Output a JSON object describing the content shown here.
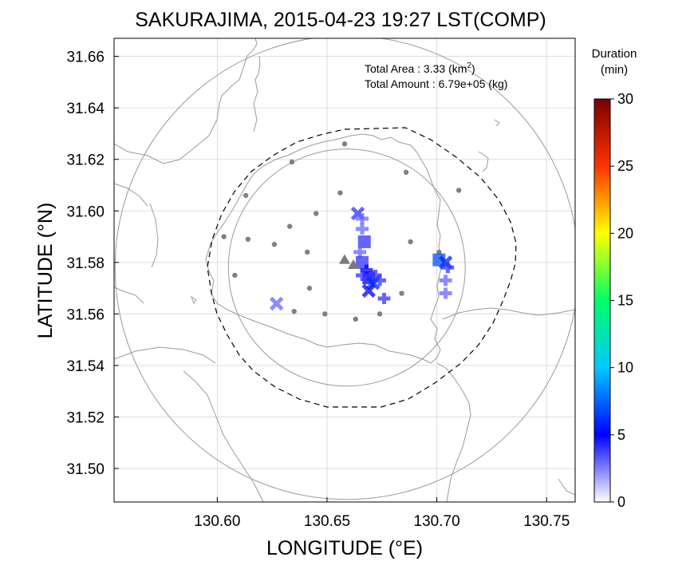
{
  "chart_data": {
    "type": "scatter",
    "title": "SAKURAJIMA, 2015-04-23 19:27 LST(COMP)",
    "xlabel": "LONGITUDE (°E)",
    "ylabel": "LATITUDE (°N)",
    "xlim": [
      130.553,
      130.763
    ],
    "ylim": [
      31.487,
      31.667
    ],
    "xticks": [
      "130.60",
      "130.65",
      "130.70",
      "130.75"
    ],
    "yticks": [
      "31.50",
      "31.52",
      "31.54",
      "31.56",
      "31.58",
      "31.60",
      "31.62",
      "31.64",
      "31.66"
    ],
    "grid": true,
    "annotations": {
      "area_label": "Total Area   : 3.33 (km",
      "area_sup": "2",
      "area_close": ")",
      "amount": "Total Amount : 6.79e+05 (kg)"
    },
    "colorbar": {
      "title_line1": "Duration",
      "title_line2": "(min)",
      "range": [
        0,
        30
      ],
      "ticks": [
        "0",
        "5",
        "10",
        "15",
        "20",
        "25",
        "30"
      ]
    },
    "stations": [
      {
        "lon": 130.658,
        "lat": 31.626
      },
      {
        "lon": 130.634,
        "lat": 31.619
      },
      {
        "lon": 130.686,
        "lat": 31.615
      },
      {
        "lon": 130.613,
        "lat": 31.606
      },
      {
        "lon": 130.656,
        "lat": 31.607
      },
      {
        "lon": 130.71,
        "lat": 31.608
      },
      {
        "lon": 130.645,
        "lat": 31.599
      },
      {
        "lon": 130.603,
        "lat": 31.59
      },
      {
        "lon": 130.614,
        "lat": 31.589
      },
      {
        "lon": 130.633,
        "lat": 31.594
      },
      {
        "lon": 130.688,
        "lat": 31.588
      },
      {
        "lon": 130.626,
        "lat": 31.587
      },
      {
        "lon": 130.641,
        "lat": 31.584
      },
      {
        "lon": 130.701,
        "lat": 31.584
      },
      {
        "lon": 130.608,
        "lat": 31.575
      },
      {
        "lon": 130.642,
        "lat": 31.57
      },
      {
        "lon": 130.684,
        "lat": 31.568
      },
      {
        "lon": 130.635,
        "lat": 31.561
      },
      {
        "lon": 130.649,
        "lat": 31.56
      },
      {
        "lon": 130.663,
        "lat": 31.558
      },
      {
        "lon": 130.674,
        "lat": 31.56
      }
    ],
    "vents": [
      {
        "lon": 130.658,
        "lat": 31.581
      },
      {
        "lon": 130.662,
        "lat": 31.579
      }
    ],
    "deposits": [
      {
        "lon": 130.664,
        "lat": 31.599,
        "min": 4,
        "shape": "x"
      },
      {
        "lon": 130.666,
        "lat": 31.597,
        "min": 3,
        "shape": "plus"
      },
      {
        "lon": 130.666,
        "lat": 31.593,
        "min": 3,
        "shape": "plus"
      },
      {
        "lon": 130.667,
        "lat": 31.588,
        "min": 4,
        "shape": "square"
      },
      {
        "lon": 130.665,
        "lat": 31.584,
        "min": 3,
        "shape": "plus"
      },
      {
        "lon": 130.666,
        "lat": 31.58,
        "min": 4,
        "shape": "square"
      },
      {
        "lon": 130.668,
        "lat": 31.577,
        "min": 5,
        "shape": "plus"
      },
      {
        "lon": 130.669,
        "lat": 31.574,
        "min": 5,
        "shape": "square"
      },
      {
        "lon": 130.671,
        "lat": 31.572,
        "min": 6,
        "shape": "x"
      },
      {
        "lon": 130.666,
        "lat": 31.575,
        "min": 4,
        "shape": "plus"
      },
      {
        "lon": 130.674,
        "lat": 31.573,
        "min": 4,
        "shape": "plus"
      },
      {
        "lon": 130.672,
        "lat": 31.575,
        "min": 4,
        "shape": "plus"
      },
      {
        "lon": 130.669,
        "lat": 31.569,
        "min": 5,
        "shape": "x"
      },
      {
        "lon": 130.676,
        "lat": 31.566,
        "min": 4,
        "shape": "plus"
      },
      {
        "lon": 130.701,
        "lat": 31.581,
        "min": 7,
        "shape": "square"
      },
      {
        "lon": 130.704,
        "lat": 31.58,
        "min": 6,
        "shape": "x"
      },
      {
        "lon": 130.705,
        "lat": 31.578,
        "min": 4,
        "shape": "plus"
      },
      {
        "lon": 130.704,
        "lat": 31.573,
        "min": 3,
        "shape": "plus"
      },
      {
        "lon": 130.704,
        "lat": 31.568,
        "min": 3,
        "shape": "plus"
      },
      {
        "lon": 130.627,
        "lat": 31.564,
        "min": 3,
        "shape": "x"
      }
    ],
    "range_rings": [
      {
        "lon": 130.659,
        "lat": 31.578,
        "radius_lat": 0.046
      },
      {
        "lon": 130.659,
        "lat": 31.578,
        "radius_lat": 0.09
      }
    ]
  }
}
